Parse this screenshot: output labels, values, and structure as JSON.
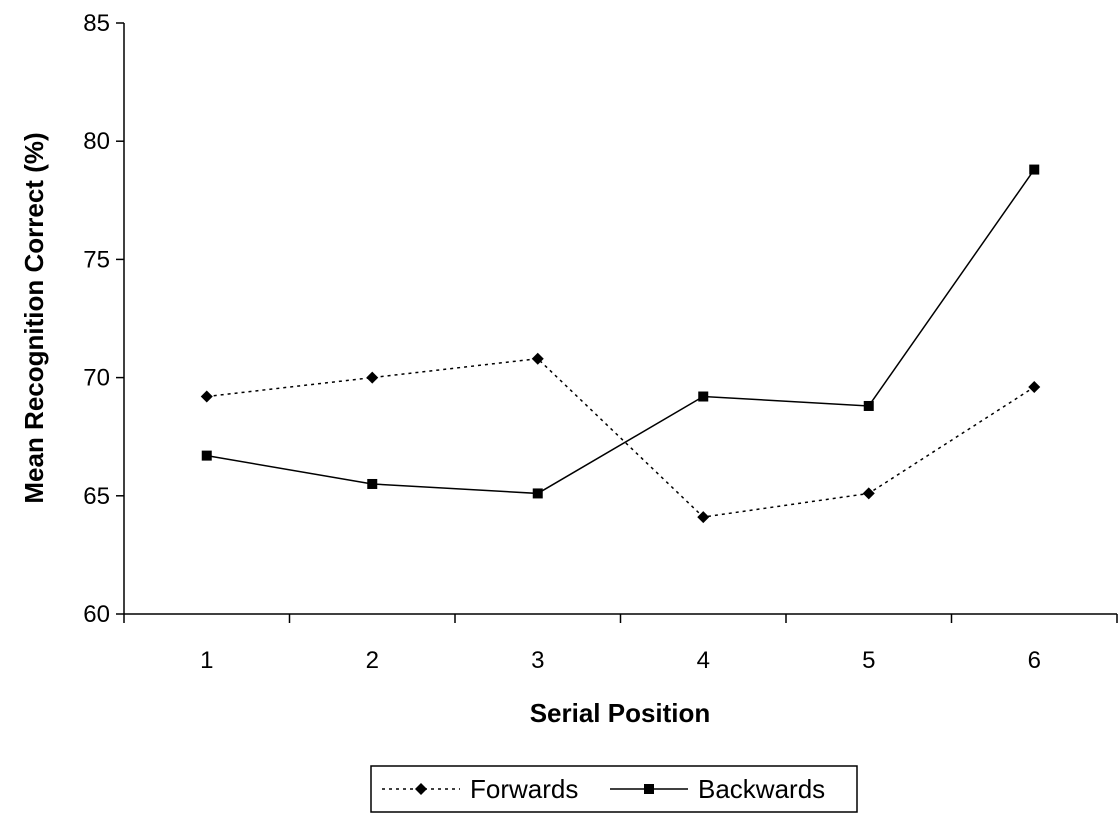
{
  "chart_data": {
    "type": "line",
    "categories": [
      "1",
      "2",
      "3",
      "4",
      "5",
      "6"
    ],
    "series": [
      {
        "name": "Forwards",
        "values": [
          69.2,
          70.0,
          70.8,
          64.1,
          65.1,
          69.6
        ],
        "line_style": "dotted",
        "marker": "diamond",
        "color": "#000000"
      },
      {
        "name": "Backwards",
        "values": [
          66.7,
          65.5,
          65.1,
          69.2,
          68.8,
          78.8
        ],
        "line_style": "solid",
        "marker": "square",
        "color": "#000000"
      }
    ],
    "xlabel": "Serial Position",
    "ylabel": "Mean Recognition Correct (%)",
    "ylim": [
      60,
      85
    ],
    "yticks": [
      "60",
      "65",
      "70",
      "75",
      "80",
      "85"
    ],
    "grid": false,
    "legend_position": "bottom"
  }
}
